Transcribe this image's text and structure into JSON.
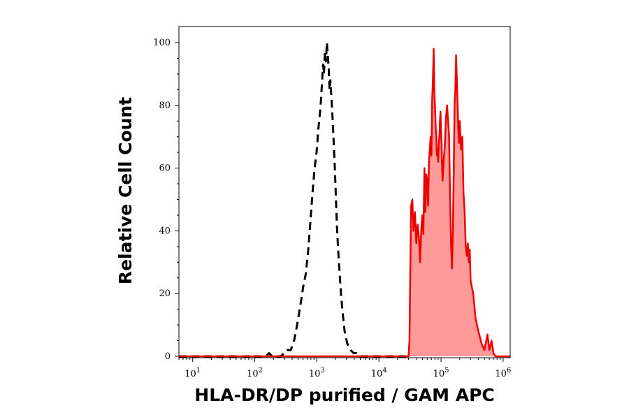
{
  "chart_data": {
    "type": "area",
    "xlabel": "HLA-DR/DP purified / GAM APC",
    "ylabel": "Relative Cell Count",
    "x_scale": "log",
    "xlim": [
      6,
      1300000
    ],
    "ylim": [
      0,
      100
    ],
    "x_ticks": [
      {
        "value": 10,
        "base": "10",
        "exp": "1"
      },
      {
        "value": 100,
        "base": "10",
        "exp": "2"
      },
      {
        "value": 1000,
        "base": "10",
        "exp": "3"
      },
      {
        "value": 10000,
        "base": "10",
        "exp": "4"
      },
      {
        "value": 100000,
        "base": "10",
        "exp": "5"
      },
      {
        "value": 1000000,
        "base": "10",
        "exp": "6"
      }
    ],
    "y_ticks": [
      0,
      20,
      40,
      60,
      80,
      100
    ],
    "series": [
      {
        "style": "dashed",
        "color": "#000000",
        "fill": false,
        "points": [
          [
            6,
            0
          ],
          [
            150,
            0
          ],
          [
            170,
            1
          ],
          [
            190,
            0
          ],
          [
            260,
            0
          ],
          [
            300,
            1
          ],
          [
            330,
            2
          ],
          [
            380,
            2
          ],
          [
            430,
            5
          ],
          [
            480,
            10
          ],
          [
            520,
            14
          ],
          [
            560,
            18
          ],
          [
            600,
            22
          ],
          [
            660,
            26
          ],
          [
            720,
            33
          ],
          [
            780,
            42
          ],
          [
            850,
            52
          ],
          [
            920,
            60
          ],
          [
            1000,
            66
          ],
          [
            1050,
            72
          ],
          [
            1100,
            76
          ],
          [
            1150,
            80
          ],
          [
            1200,
            86
          ],
          [
            1260,
            93
          ],
          [
            1300,
            90
          ],
          [
            1350,
            97
          ],
          [
            1400,
            94
          ],
          [
            1450,
            100
          ],
          [
            1500,
            96
          ],
          [
            1550,
            92
          ],
          [
            1600,
            85
          ],
          [
            1650,
            88
          ],
          [
            1700,
            84
          ],
          [
            1800,
            75
          ],
          [
            1950,
            60
          ],
          [
            2100,
            42
          ],
          [
            2200,
            34
          ],
          [
            2300,
            28
          ],
          [
            2450,
            20
          ],
          [
            2600,
            14
          ],
          [
            2800,
            8
          ],
          [
            3100,
            4
          ],
          [
            3500,
            2
          ],
          [
            3900,
            1
          ],
          [
            4300,
            1
          ],
          [
            5000,
            0
          ],
          [
            8000,
            0
          ],
          [
            30000,
            0
          ]
        ]
      },
      {
        "style": "solid",
        "color": "#ee0000",
        "fill": true,
        "fill_color": "#ff9a9a",
        "points": [
          [
            6,
            0
          ],
          [
            30000,
            0
          ],
          [
            31000,
            5
          ],
          [
            32000,
            28
          ],
          [
            33000,
            48
          ],
          [
            34500,
            50
          ],
          [
            36000,
            40
          ],
          [
            38000,
            46
          ],
          [
            40000,
            36
          ],
          [
            42000,
            42
          ],
          [
            44000,
            38
          ],
          [
            46000,
            30
          ],
          [
            48000,
            40
          ],
          [
            50000,
            45
          ],
          [
            52000,
            39
          ],
          [
            54000,
            60
          ],
          [
            56000,
            46
          ],
          [
            58000,
            58
          ],
          [
            60000,
            56
          ],
          [
            62000,
            48
          ],
          [
            64000,
            62
          ],
          [
            66000,
            66
          ],
          [
            68000,
            70
          ],
          [
            70000,
            64
          ],
          [
            72000,
            82
          ],
          [
            74000,
            88
          ],
          [
            76000,
            98
          ],
          [
            78000,
            84
          ],
          [
            80000,
            80
          ],
          [
            82000,
            73
          ],
          [
            84000,
            70
          ],
          [
            86000,
            64
          ],
          [
            88000,
            66
          ],
          [
            90000,
            62
          ],
          [
            92000,
            68
          ],
          [
            94000,
            70
          ],
          [
            96000,
            75
          ],
          [
            98000,
            78
          ],
          [
            100000,
            72
          ],
          [
            102000,
            68
          ],
          [
            104000,
            60
          ],
          [
            106000,
            56
          ],
          [
            110000,
            62
          ],
          [
            115000,
            67
          ],
          [
            120000,
            76
          ],
          [
            125000,
            80
          ],
          [
            130000,
            75
          ],
          [
            135000,
            70
          ],
          [
            140000,
            50
          ],
          [
            145000,
            36
          ],
          [
            150000,
            28
          ],
          [
            155000,
            40
          ],
          [
            160000,
            58
          ],
          [
            165000,
            80
          ],
          [
            170000,
            85
          ],
          [
            175000,
            96
          ],
          [
            180000,
            88
          ],
          [
            185000,
            80
          ],
          [
            190000,
            72
          ],
          [
            195000,
            68
          ],
          [
            200000,
            75
          ],
          [
            210000,
            66
          ],
          [
            220000,
            70
          ],
          [
            230000,
            52
          ],
          [
            240000,
            46
          ],
          [
            250000,
            35
          ],
          [
            260000,
            32
          ],
          [
            270000,
            36
          ],
          [
            280000,
            30
          ],
          [
            290000,
            34
          ],
          [
            300000,
            24
          ],
          [
            330000,
            20
          ],
          [
            360000,
            12
          ],
          [
            400000,
            8
          ],
          [
            450000,
            4
          ],
          [
            500000,
            2
          ],
          [
            560000,
            7
          ],
          [
            600000,
            2
          ],
          [
            650000,
            5
          ],
          [
            700000,
            1
          ],
          [
            750000,
            0
          ],
          [
            1300000,
            0
          ]
        ]
      }
    ]
  }
}
